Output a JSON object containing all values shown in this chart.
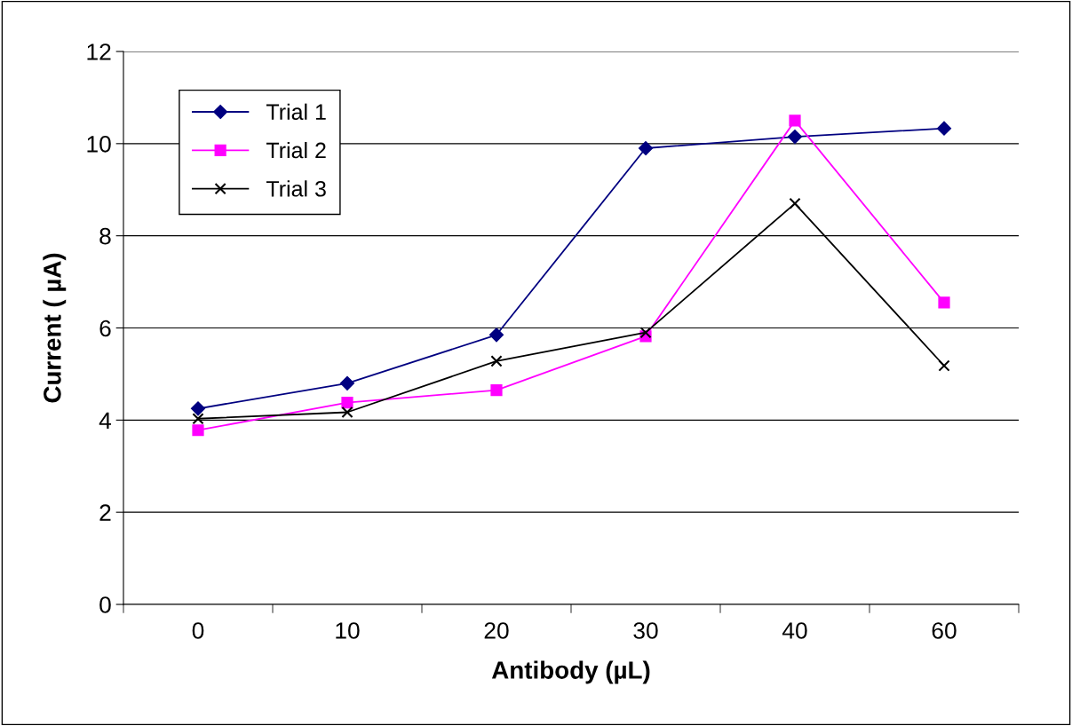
{
  "chart_data": {
    "type": "line",
    "xlabel": "Antibody (µL)",
    "ylabel": "Current ( µA)",
    "categories": [
      "0",
      "10",
      "20",
      "30",
      "40",
      "60"
    ],
    "series": [
      {
        "name": "Trial 1",
        "color": "#000080",
        "marker": "diamond",
        "values": [
          4.25,
          4.8,
          5.85,
          9.9,
          10.15,
          10.33
        ]
      },
      {
        "name": "Trial 2",
        "color": "#ff00ff",
        "marker": "square",
        "values": [
          3.78,
          4.38,
          4.65,
          5.82,
          10.5,
          6.55
        ]
      },
      {
        "name": "Trial 3",
        "color": "#000000",
        "marker": "cross",
        "values": [
          4.03,
          4.17,
          5.28,
          5.9,
          8.7,
          5.18
        ]
      }
    ],
    "ylim": [
      0,
      12
    ],
    "yticks": [
      0,
      2,
      4,
      6,
      8,
      10,
      12
    ],
    "grid": "y",
    "legend": "top left"
  }
}
